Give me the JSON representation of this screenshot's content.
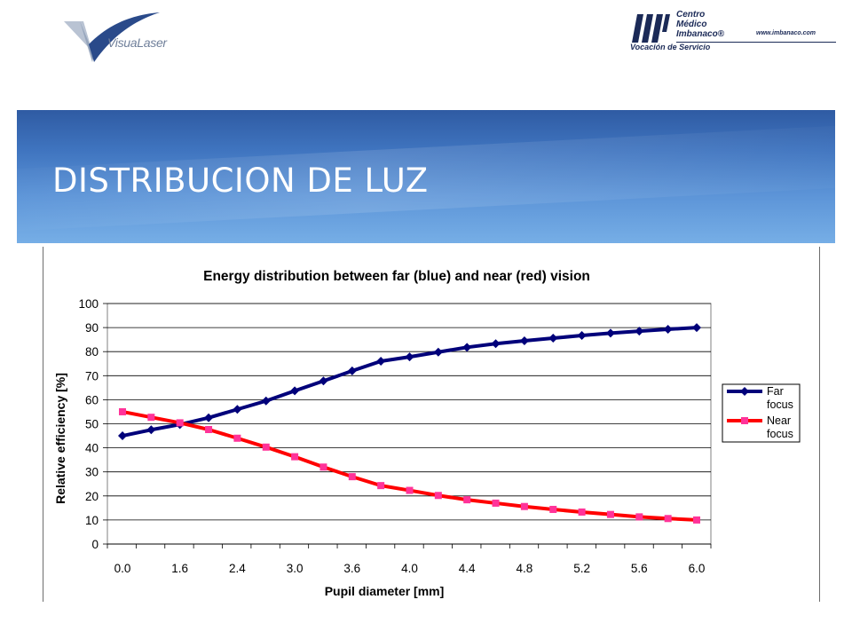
{
  "header": {
    "left_logo_text": "VisuaLaser",
    "right_logo_name": [
      "Centro",
      "Médico",
      "Imbanaco®"
    ],
    "right_logo_url": "www.imbanaco.com",
    "right_logo_tagline": "Vocación de Servicio"
  },
  "banner": {
    "title": "DISTRIBUCION DE LUZ"
  },
  "colors": {
    "far": "#00007a",
    "near": "#ff0000",
    "banner": "#4a80c8"
  },
  "chart_data": {
    "type": "line",
    "title": "Energy distribution between far (blue) and near (red) vision",
    "xlabel": "Pupil diameter [mm]",
    "ylabel": "Relative efficiency [%]",
    "ylim": [
      0,
      100
    ],
    "yticks": [
      "0",
      "10",
      "20",
      "30",
      "40",
      "50",
      "60",
      "70",
      "80",
      "90",
      "100"
    ],
    "xticks": [
      "0.0",
      "1.6",
      "2.4",
      "3.0",
      "3.6",
      "4.0",
      "4.4",
      "4.8",
      "5.2",
      "5.6",
      "6.0"
    ],
    "grid": true,
    "legend_position": "right",
    "series": [
      {
        "name": "Far focus",
        "legend_lines": [
          "Far",
          "focus"
        ],
        "marker": "diamond",
        "values": [
          45,
          47.5,
          49.7,
          52.5,
          56,
          59.5,
          63.7,
          67.8,
          72,
          76,
          77.8,
          79.8,
          81.8,
          83.3,
          84.5,
          85.6,
          86.7,
          87.7,
          88.5,
          89.3,
          90
        ]
      },
      {
        "name": "Near focus",
        "legend_lines": [
          "Near",
          "focus"
        ],
        "marker": "square",
        "values": [
          55,
          52.7,
          50.4,
          47.6,
          44,
          40.3,
          36.3,
          32,
          28,
          24.3,
          22.3,
          20.2,
          18.4,
          17,
          15.6,
          14.4,
          13.3,
          12.3,
          11.3,
          10.6,
          10
        ]
      }
    ]
  }
}
